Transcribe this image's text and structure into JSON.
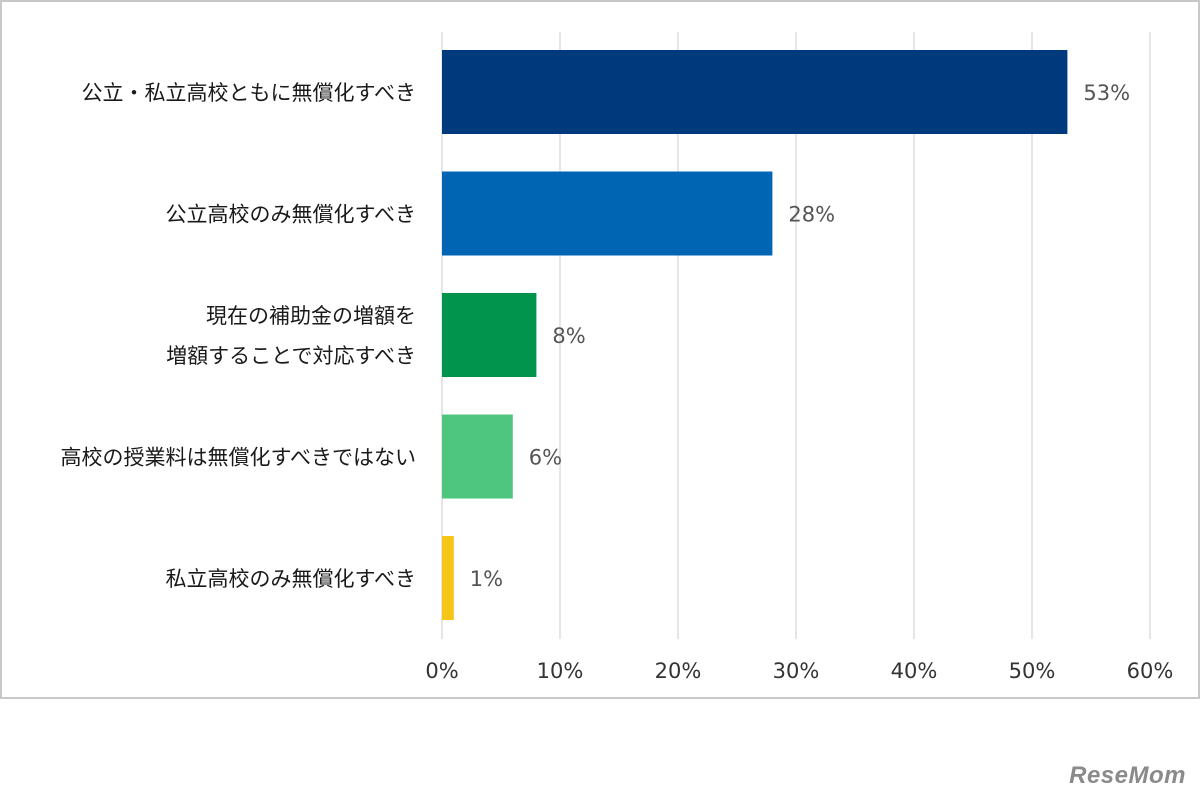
{
  "chart_data": {
    "type": "bar",
    "orientation": "horizontal",
    "categories": [
      "公立・私立高校ともに無償化すべき",
      "公立高校のみ無償化すべき",
      "現在の補助金の増額を\n増額することで対応すべき",
      "高校の授業料は無償化すべきではない",
      "私立高校のみ無償化すべき"
    ],
    "values": [
      53,
      28,
      8,
      6,
      1
    ],
    "value_labels": [
      "53%",
      "28%",
      "8%",
      "6%",
      "1%"
    ],
    "bar_colors": [
      "#003a7d",
      "#0066b3",
      "#00944c",
      "#4fc67f",
      "#f5c518"
    ],
    "xlim": [
      0,
      60
    ],
    "xticks": [
      0,
      10,
      20,
      30,
      40,
      50,
      60
    ],
    "xtick_labels": [
      "0%",
      "10%",
      "20%",
      "30%",
      "40%",
      "50%",
      "60%"
    ],
    "grid": "vertical",
    "legend": "none"
  },
  "watermark": "ReseMom"
}
